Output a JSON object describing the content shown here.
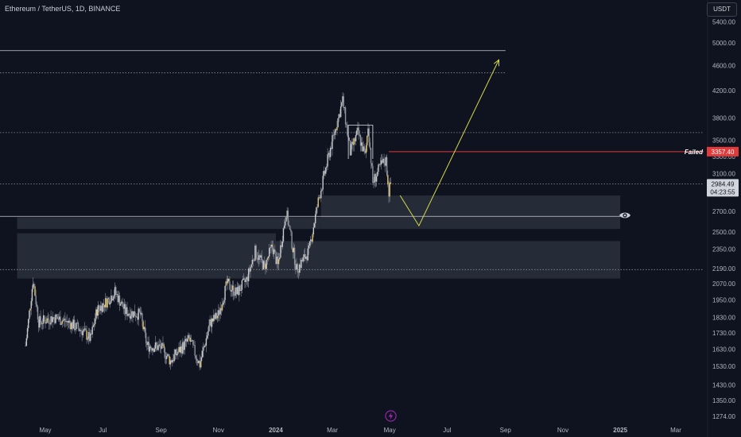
{
  "header": {
    "symbol_title": "Ethereum / TetherUS, 1D, BINANCE",
    "currency_button": "USDT"
  },
  "colors": {
    "background": "#0f1320",
    "candle_body": "#c9c9c9",
    "candle_wick": "#8a8f99",
    "candle_highlight": "#e0c36a",
    "projection_arrow": "#d4d94a",
    "failed_line": "#e03a3a",
    "zone_fill": "#3a3f4d",
    "level_line": "#c9cbd2",
    "dotted_line": "#8a8f99"
  },
  "chart_data": {
    "type": "candlestick",
    "title": "Ethereum / TetherUS, 1D, BINANCE",
    "y_scale": "log",
    "ylim": [
      1250,
      6000
    ],
    "y_ticks": [
      5400,
      5000,
      4600,
      4200,
      3800,
      3500,
      3300,
      3100,
      2900,
      2700,
      2500,
      2350,
      2190,
      2070,
      1950,
      1830,
      1730,
      1630,
      1530,
      1430,
      1350,
      1274
    ],
    "y_tick_labels": [
      "5400.00",
      "5000.00",
      "4600.00",
      "4200.00",
      "3800.00",
      "3500.00",
      "3300.00",
      "3100.00",
      "2900.00",
      "2700.00",
      "2500.00",
      "2350.00",
      "2190.00",
      "2070.00",
      "1950.00",
      "1830.00",
      "1730.00",
      "1630.00",
      "1530.00",
      "1430.00",
      "1350.00",
      "1274.00"
    ],
    "x_tick_labels": [
      {
        "date": "2023-05-01",
        "label": "May"
      },
      {
        "date": "2023-07-01",
        "label": "Jul"
      },
      {
        "date": "2023-09-01",
        "label": "Sep"
      },
      {
        "date": "2023-11-01",
        "label": "Nov"
      },
      {
        "date": "2024-01-01",
        "label": "2024"
      },
      {
        "date": "2024-03-01",
        "label": "Mar"
      },
      {
        "date": "2024-05-01",
        "label": "May"
      },
      {
        "date": "2024-07-01",
        "label": "Jul"
      },
      {
        "date": "2024-09-01",
        "label": "Sep"
      },
      {
        "date": "2024-11-01",
        "label": "Nov"
      },
      {
        "date": "2025-01-01",
        "label": "2025"
      },
      {
        "date": "2025-03-01",
        "label": "Mar"
      }
    ],
    "price_path": [
      {
        "date": "2023-04-10",
        "price": 1650
      },
      {
        "date": "2023-04-18",
        "price": 2100
      },
      {
        "date": "2023-04-24",
        "price": 1800
      },
      {
        "date": "2023-05-10",
        "price": 1830
      },
      {
        "date": "2023-05-25",
        "price": 1800
      },
      {
        "date": "2023-06-10",
        "price": 1740
      },
      {
        "date": "2023-06-18",
        "price": 1690
      },
      {
        "date": "2023-06-25",
        "price": 1880
      },
      {
        "date": "2023-07-05",
        "price": 1940
      },
      {
        "date": "2023-07-14",
        "price": 2010
      },
      {
        "date": "2023-07-25",
        "price": 1870
      },
      {
        "date": "2023-08-10",
        "price": 1850
      },
      {
        "date": "2023-08-17",
        "price": 1650
      },
      {
        "date": "2023-09-01",
        "price": 1640
      },
      {
        "date": "2023-09-11",
        "price": 1560
      },
      {
        "date": "2023-09-20",
        "price": 1620
      },
      {
        "date": "2023-10-01",
        "price": 1690
      },
      {
        "date": "2023-10-12",
        "price": 1540
      },
      {
        "date": "2023-10-23",
        "price": 1790
      },
      {
        "date": "2023-11-01",
        "price": 1850
      },
      {
        "date": "2023-11-10",
        "price": 2070
      },
      {
        "date": "2023-11-20",
        "price": 2000
      },
      {
        "date": "2023-12-01",
        "price": 2100
      },
      {
        "date": "2023-12-10",
        "price": 2330
      },
      {
        "date": "2023-12-20",
        "price": 2200
      },
      {
        "date": "2023-12-28",
        "price": 2380
      },
      {
        "date": "2024-01-03",
        "price": 2210
      },
      {
        "date": "2024-01-12",
        "price": 2700
      },
      {
        "date": "2024-01-23",
        "price": 2180
      },
      {
        "date": "2024-02-05",
        "price": 2330
      },
      {
        "date": "2024-02-15",
        "price": 2800
      },
      {
        "date": "2024-02-28",
        "price": 3400
      },
      {
        "date": "2024-03-12",
        "price": 4050
      },
      {
        "date": "2024-03-20",
        "price": 3350
      },
      {
        "date": "2024-03-28",
        "price": 3600
      },
      {
        "date": "2024-04-05",
        "price": 3300
      },
      {
        "date": "2024-04-08",
        "price": 3700
      },
      {
        "date": "2024-04-13",
        "price": 3000
      },
      {
        "date": "2024-04-22",
        "price": 3200
      },
      {
        "date": "2024-04-27",
        "price": 3250
      },
      {
        "date": "2024-04-30",
        "price": 2900
      },
      {
        "date": "2024-05-02",
        "price": 2984
      }
    ],
    "zones": [
      {
        "start": "2024-02-18",
        "end": "2025-01-01",
        "low": 2530,
        "high": 2860
      },
      {
        "start": "2023-04-01",
        "end": "2024-02-18",
        "low": 2530,
        "high": 2640
      },
      {
        "start": "2023-04-01",
        "end": "2025-01-01",
        "low": 2110,
        "high": 2420
      },
      {
        "start": "2023-04-01",
        "end": "2024-01-01",
        "low": 2420,
        "high": 2490
      }
    ],
    "level_lines": [
      {
        "price": 4860,
        "style": "solid"
      },
      {
        "price": 4480,
        "style": "dotted"
      },
      {
        "price": 3600,
        "style": "dotted"
      },
      {
        "price": 2984,
        "style": "dotted"
      },
      {
        "price": 2650,
        "style": "solid"
      },
      {
        "price": 2180,
        "style": "dotted"
      }
    ],
    "failed_level": {
      "price": 3357.4,
      "label": "Failed",
      "value_label": "3357.40"
    },
    "current_price": {
      "price": 2984.49,
      "value_label": "2984.49",
      "countdown": "04:23:55"
    },
    "projection_path": [
      {
        "date": "2024-05-12",
        "price": 2860
      },
      {
        "date": "2024-06-01",
        "price": 2560
      },
      {
        "date": "2024-08-25",
        "price": 4700
      }
    ]
  }
}
